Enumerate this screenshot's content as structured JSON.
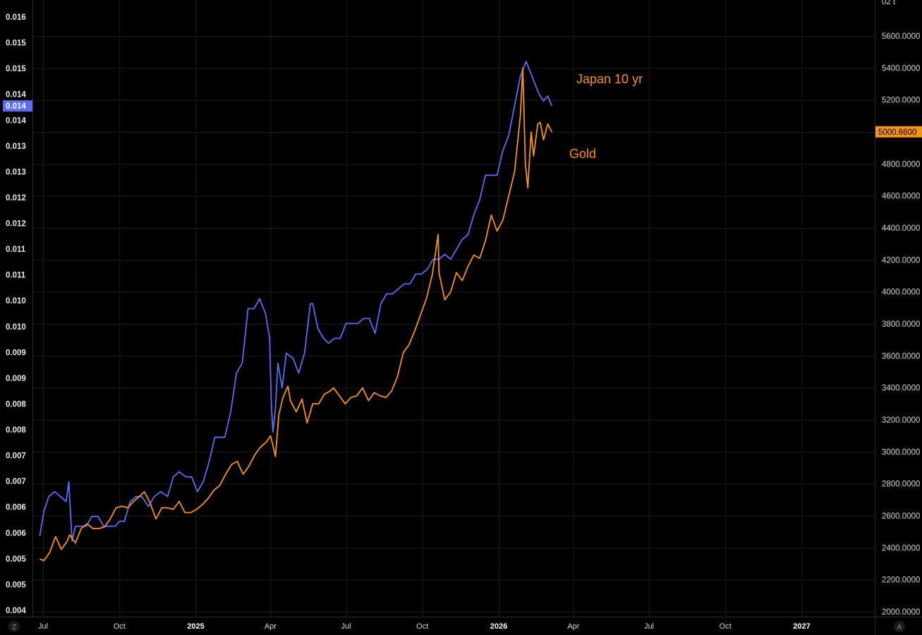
{
  "chart_data": {
    "type": "line",
    "left_axis": {
      "ticks": [
        "0.016",
        "0.015",
        "0.015",
        "0.014",
        "0.014",
        "0.013",
        "0.013",
        "0.012",
        "0.012",
        "0.011",
        "0.011",
        "0.010",
        "0.010",
        "0.009",
        "0.009",
        "0.008",
        "0.008",
        "0.007",
        "0.007",
        "0.006",
        "0.006",
        "0.005",
        "0.005",
        "0.004"
      ],
      "current_label": "0.014",
      "current_value": 0.0142,
      "ylim": [
        0.004,
        0.0164
      ],
      "current_color": "#5b6cf5"
    },
    "right_axis": {
      "ticks": [
        "5600.0000",
        "5400.0000",
        "5200.0000",
        "5000.0000",
        "4800.0000",
        "4600.0000",
        "4400.0000",
        "4200.0000",
        "4000.0000",
        "3800.0000",
        "3600.0000",
        "3400.0000",
        "3200.0000",
        "3000.0000",
        "2800.0000",
        "2600.0000",
        "2400.0000",
        "2200.0000",
        "2000.0000"
      ],
      "current_label": "5000.6600",
      "current_value": 5000.66,
      "ylim": [
        1970,
        5800
      ],
      "top_partial": "02 t",
      "current_color": "#f7931a"
    },
    "x_axis": {
      "ticks": [
        {
          "label": "Jul",
          "date": "2024-07-01",
          "bold": false
        },
        {
          "label": "Oct",
          "date": "2024-10-01",
          "bold": false
        },
        {
          "label": "2025",
          "date": "2025-01-01",
          "bold": true
        },
        {
          "label": "Apr",
          "date": "2025-04-01",
          "bold": false
        },
        {
          "label": "Jul",
          "date": "2025-07-01",
          "bold": false
        },
        {
          "label": "Oct",
          "date": "2025-10-01",
          "bold": false
        },
        {
          "label": "2026",
          "date": "2026-01-01",
          "bold": true
        },
        {
          "label": "Apr",
          "date": "2026-04-01",
          "bold": false
        },
        {
          "label": "Jul",
          "date": "2026-07-01",
          "bold": false
        },
        {
          "label": "Oct",
          "date": "2026-10-01",
          "bold": false
        },
        {
          "label": "2027",
          "date": "2027-01-01",
          "bold": true
        }
      ]
    },
    "series": [
      {
        "name": "Japan 10 yr",
        "color": "#5b6cf5",
        "axis": "left",
        "points": [
          [
            "2024-06-27",
            0.0055
          ],
          [
            "2024-07-02",
            0.006
          ],
          [
            "2024-07-08",
            0.0063
          ],
          [
            "2024-07-15",
            0.0064
          ],
          [
            "2024-07-22",
            0.0063
          ],
          [
            "2024-07-29",
            0.0062
          ],
          [
            "2024-08-01",
            0.0066
          ],
          [
            "2024-08-05",
            0.0054
          ],
          [
            "2024-08-09",
            0.0057
          ],
          [
            "2024-08-15",
            0.0057
          ],
          [
            "2024-08-22",
            0.0057
          ],
          [
            "2024-08-29",
            0.0059
          ],
          [
            "2024-09-05",
            0.0059
          ],
          [
            "2024-09-12",
            0.0057
          ],
          [
            "2024-09-19",
            0.0057
          ],
          [
            "2024-09-26",
            0.0057
          ],
          [
            "2024-10-01",
            0.0058
          ],
          [
            "2024-10-07",
            0.0058
          ],
          [
            "2024-10-14",
            0.0062
          ],
          [
            "2024-10-21",
            0.0063
          ],
          [
            "2024-10-28",
            0.0063
          ],
          [
            "2024-11-05",
            0.0061
          ],
          [
            "2024-11-12",
            0.0063
          ],
          [
            "2024-11-20",
            0.0064
          ],
          [
            "2024-11-28",
            0.0063
          ],
          [
            "2024-12-05",
            0.0067
          ],
          [
            "2024-12-12",
            0.0068
          ],
          [
            "2024-12-20",
            0.0067
          ],
          [
            "2024-12-27",
            0.0067
          ],
          [
            "2025-01-03",
            0.0064
          ],
          [
            "2025-01-10",
            0.0066
          ],
          [
            "2025-01-17",
            0.007
          ],
          [
            "2025-01-24",
            0.0075
          ],
          [
            "2025-01-30",
            0.0075
          ],
          [
            "2025-02-05",
            0.0075
          ],
          [
            "2025-02-12",
            0.008
          ],
          [
            "2025-02-19",
            0.0088
          ],
          [
            "2025-02-26",
            0.009
          ],
          [
            "2025-03-05",
            0.0101
          ],
          [
            "2025-03-12",
            0.0101
          ],
          [
            "2025-03-19",
            0.0103
          ],
          [
            "2025-03-26",
            0.01
          ],
          [
            "2025-03-31",
            0.0095
          ],
          [
            "2025-04-02",
            0.0082
          ],
          [
            "2025-04-04",
            0.0076
          ],
          [
            "2025-04-07",
            0.0081
          ],
          [
            "2025-04-10",
            0.009
          ],
          [
            "2025-04-15",
            0.0085
          ],
          [
            "2025-04-20",
            0.0092
          ],
          [
            "2025-04-28",
            0.0091
          ],
          [
            "2025-05-05",
            0.0088
          ],
          [
            "2025-05-12",
            0.0092
          ],
          [
            "2025-05-19",
            0.0102
          ],
          [
            "2025-05-22",
            0.0102
          ],
          [
            "2025-05-28",
            0.0097
          ],
          [
            "2025-06-04",
            0.0095
          ],
          [
            "2025-06-10",
            0.0094
          ],
          [
            "2025-06-17",
            0.0095
          ],
          [
            "2025-06-24",
            0.0095
          ],
          [
            "2025-07-01",
            0.0098
          ],
          [
            "2025-07-08",
            0.0098
          ],
          [
            "2025-07-15",
            0.0098
          ],
          [
            "2025-07-22",
            0.0099
          ],
          [
            "2025-07-29",
            0.0099
          ],
          [
            "2025-08-05",
            0.0096
          ],
          [
            "2025-08-12",
            0.0102
          ],
          [
            "2025-08-19",
            0.0104
          ],
          [
            "2025-08-26",
            0.0104
          ],
          [
            "2025-09-02",
            0.0105
          ],
          [
            "2025-09-09",
            0.0106
          ],
          [
            "2025-09-16",
            0.0106
          ],
          [
            "2025-09-23",
            0.0108
          ],
          [
            "2025-09-30",
            0.0108
          ],
          [
            "2025-10-07",
            0.0109
          ],
          [
            "2025-10-14",
            0.0111
          ],
          [
            "2025-10-21",
            0.0111
          ],
          [
            "2025-10-28",
            0.0112
          ],
          [
            "2025-11-04",
            0.0111
          ],
          [
            "2025-11-11",
            0.0113
          ],
          [
            "2025-11-18",
            0.0115
          ],
          [
            "2025-11-25",
            0.0116
          ],
          [
            "2025-12-02",
            0.012
          ],
          [
            "2025-12-09",
            0.0123
          ],
          [
            "2025-12-16",
            0.0128
          ],
          [
            "2025-12-23",
            0.0128
          ],
          [
            "2025-12-30",
            0.0128
          ],
          [
            "2026-01-06",
            0.0133
          ],
          [
            "2026-01-13",
            0.0136
          ],
          [
            "2026-01-20",
            0.0142
          ],
          [
            "2026-01-27",
            0.0148
          ],
          [
            "2026-02-03",
            0.0151
          ],
          [
            "2026-02-10",
            0.0148
          ],
          [
            "2026-02-17",
            0.0145
          ],
          [
            "2026-02-20",
            0.0144
          ],
          [
            "2026-02-24",
            0.0143
          ],
          [
            "2026-03-01",
            0.0144
          ],
          [
            "2026-03-06",
            0.0142
          ]
        ]
      },
      {
        "name": "Gold",
        "color": "#f7931a",
        "axis": "right",
        "points": [
          [
            "2024-06-27",
            2330
          ],
          [
            "2024-07-02",
            2320
          ],
          [
            "2024-07-09",
            2370
          ],
          [
            "2024-07-16",
            2470
          ],
          [
            "2024-07-23",
            2390
          ],
          [
            "2024-07-30",
            2440
          ],
          [
            "2024-08-02",
            2480
          ],
          [
            "2024-08-09",
            2430
          ],
          [
            "2024-08-16",
            2520
          ],
          [
            "2024-08-23",
            2550
          ],
          [
            "2024-08-30",
            2520
          ],
          [
            "2024-09-06",
            2520
          ],
          [
            "2024-09-13",
            2530
          ],
          [
            "2024-09-20",
            2580
          ],
          [
            "2024-09-27",
            2650
          ],
          [
            "2024-10-04",
            2660
          ],
          [
            "2024-10-11",
            2650
          ],
          [
            "2024-10-18",
            2690
          ],
          [
            "2024-10-25",
            2720
          ],
          [
            "2024-10-31",
            2750
          ],
          [
            "2024-11-07",
            2680
          ],
          [
            "2024-11-14",
            2580
          ],
          [
            "2024-11-21",
            2650
          ],
          [
            "2024-11-28",
            2650
          ],
          [
            "2024-12-05",
            2640
          ],
          [
            "2024-12-12",
            2690
          ],
          [
            "2024-12-19",
            2620
          ],
          [
            "2024-12-26",
            2620
          ],
          [
            "2025-01-02",
            2640
          ],
          [
            "2025-01-09",
            2670
          ],
          [
            "2025-01-16",
            2710
          ],
          [
            "2025-01-23",
            2760
          ],
          [
            "2025-01-30",
            2790
          ],
          [
            "2025-02-06",
            2860
          ],
          [
            "2025-02-13",
            2920
          ],
          [
            "2025-02-20",
            2940
          ],
          [
            "2025-02-27",
            2860
          ],
          [
            "2025-03-06",
            2910
          ],
          [
            "2025-03-13",
            2980
          ],
          [
            "2025-03-20",
            3030
          ],
          [
            "2025-03-27",
            3060
          ],
          [
            "2025-04-01",
            3100
          ],
          [
            "2025-04-03",
            3060
          ],
          [
            "2025-04-07",
            2970
          ],
          [
            "2025-04-11",
            3230
          ],
          [
            "2025-04-16",
            3340
          ],
          [
            "2025-04-22",
            3410
          ],
          [
            "2025-04-25",
            3320
          ],
          [
            "2025-05-02",
            3250
          ],
          [
            "2025-05-09",
            3330
          ],
          [
            "2025-05-15",
            3180
          ],
          [
            "2025-05-22",
            3300
          ],
          [
            "2025-05-29",
            3300
          ],
          [
            "2025-06-05",
            3360
          ],
          [
            "2025-06-12",
            3380
          ],
          [
            "2025-06-16",
            3400
          ],
          [
            "2025-06-23",
            3350
          ],
          [
            "2025-06-30",
            3300
          ],
          [
            "2025-07-07",
            3340
          ],
          [
            "2025-07-14",
            3350
          ],
          [
            "2025-07-21",
            3400
          ],
          [
            "2025-07-28",
            3320
          ],
          [
            "2025-08-04",
            3370
          ],
          [
            "2025-08-11",
            3350
          ],
          [
            "2025-08-18",
            3340
          ],
          [
            "2025-08-25",
            3380
          ],
          [
            "2025-09-01",
            3470
          ],
          [
            "2025-09-08",
            3620
          ],
          [
            "2025-09-15",
            3670
          ],
          [
            "2025-09-22",
            3760
          ],
          [
            "2025-09-29",
            3860
          ],
          [
            "2025-10-06",
            3960
          ],
          [
            "2025-10-13",
            4110
          ],
          [
            "2025-10-20",
            4360
          ],
          [
            "2025-10-21",
            4120
          ],
          [
            "2025-10-28",
            3950
          ],
          [
            "2025-11-04",
            4000
          ],
          [
            "2025-11-11",
            4120
          ],
          [
            "2025-11-18",
            4070
          ],
          [
            "2025-11-25",
            4160
          ],
          [
            "2025-12-02",
            4230
          ],
          [
            "2025-12-09",
            4210
          ],
          [
            "2025-12-16",
            4320
          ],
          [
            "2025-12-23",
            4480
          ],
          [
            "2025-12-30",
            4380
          ],
          [
            "2026-01-06",
            4450
          ],
          [
            "2026-01-13",
            4600
          ],
          [
            "2026-01-20",
            4750
          ],
          [
            "2026-01-27",
            5100
          ],
          [
            "2026-01-30",
            5400
          ],
          [
            "2026-02-02",
            4800
          ],
          [
            "2026-02-05",
            4650
          ],
          [
            "2026-02-09",
            5000
          ],
          [
            "2026-02-12",
            4850
          ],
          [
            "2026-02-17",
            5050
          ],
          [
            "2026-02-20",
            5060
          ],
          [
            "2026-02-24",
            4950
          ],
          [
            "2026-03-01",
            5050
          ],
          [
            "2026-03-06",
            5000
          ]
        ]
      }
    ],
    "annotations": [
      {
        "text": "Japan 10 yr",
        "color": "#f7931a"
      },
      {
        "text": "Gold",
        "color": "#f7931a"
      }
    ],
    "grid": true,
    "corner_labels": {
      "bottom_left": "Z",
      "bottom_right": "A"
    }
  }
}
